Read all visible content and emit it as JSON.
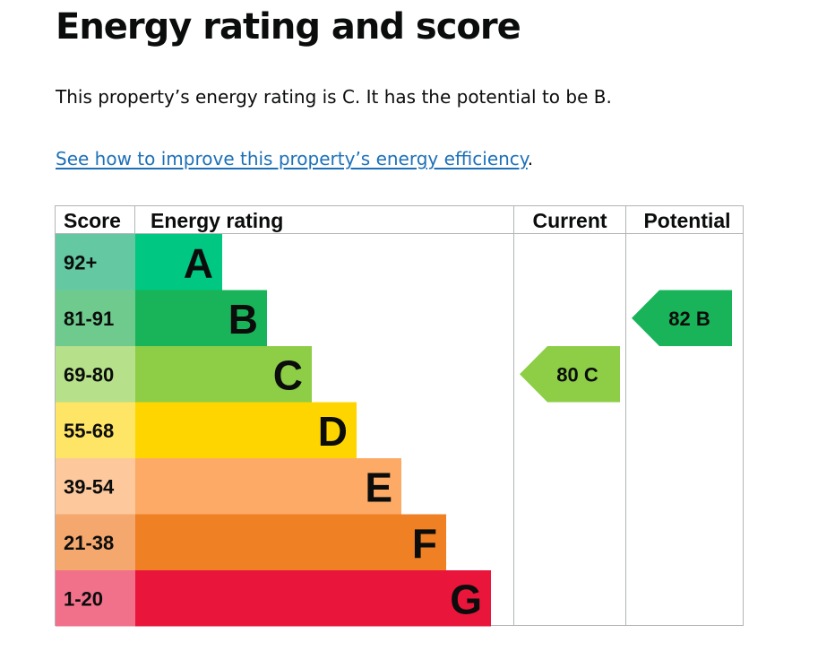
{
  "page": {
    "heading": "Energy rating and score",
    "summary": "This property’s energy rating is C. It has the potential to be B.",
    "improve_link": "See how to improve this property’s energy efficiency",
    "improve_link_suffix": "."
  },
  "chart_data": {
    "type": "table",
    "headers": {
      "score": "Score",
      "rating": "Energy rating",
      "current": "Current",
      "potential": "Potential"
    },
    "bands": [
      {
        "letter": "A",
        "range": "92+",
        "color": "#00c781",
        "score_bg": "#64c8a3"
      },
      {
        "letter": "B",
        "range": "81-91",
        "color": "#19b459",
        "score_bg": "#6fcb8d"
      },
      {
        "letter": "C",
        "range": "69-80",
        "color": "#8dce46",
        "score_bg": "#b6e08a"
      },
      {
        "letter": "D",
        "range": "55-68",
        "color": "#ffd500",
        "score_bg": "#ffe566"
      },
      {
        "letter": "E",
        "range": "39-54",
        "color": "#fcaa65",
        "score_bg": "#fdc89c"
      },
      {
        "letter": "F",
        "range": "21-38",
        "color": "#ef8023",
        "score_bg": "#f4a86e"
      },
      {
        "letter": "G",
        "range": "1-20",
        "color": "#e9153b",
        "score_bg": "#f1708a"
      }
    ],
    "current": {
      "score": 80,
      "letter": "C",
      "label": "80  C",
      "color": "#8dce46"
    },
    "potential": {
      "score": 82,
      "letter": "B",
      "label": "82  B",
      "color": "#19b459"
    }
  }
}
